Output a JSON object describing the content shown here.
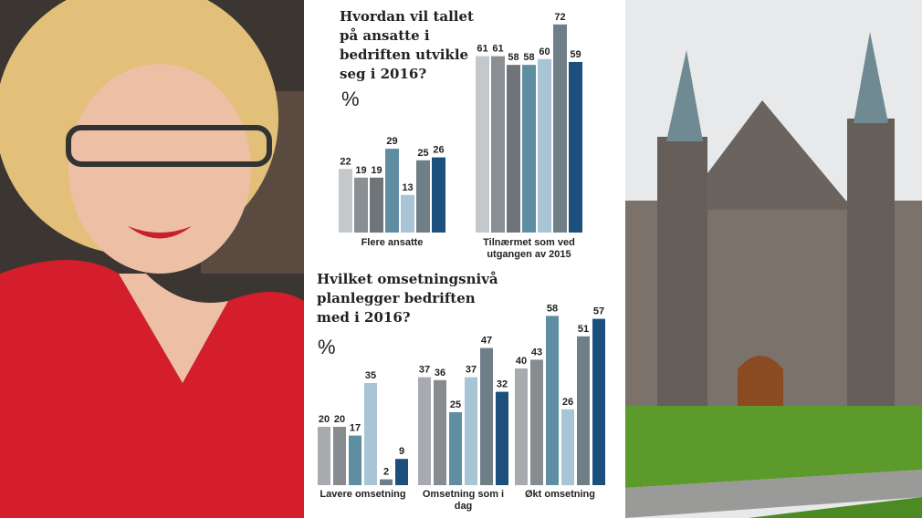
{
  "chart_data": [
    {
      "type": "bar",
      "title": "Hvordan vil tallet på ansatte i bedriften utvikle seg i 2016?",
      "unit_label": "%",
      "categories": [
        "Flere ansatte",
        "Tilnærmet som ved utgangen av 2015"
      ],
      "series": [
        {
          "color": "#c5c8cb",
          "values": [
            22,
            61
          ]
        },
        {
          "color": "#8a8f94",
          "values": [
            19,
            61
          ]
        },
        {
          "color": "#6f7479",
          "values": [
            19,
            58
          ]
        },
        {
          "color": "#5f8ea3",
          "values": [
            29,
            58
          ]
        },
        {
          "color": "#a9c4d4",
          "values": [
            13,
            60
          ]
        },
        {
          "color": "#6e7f88",
          "values": [
            25,
            72
          ]
        },
        {
          "color": "#1d4f7c",
          "values": [
            26,
            59
          ]
        }
      ]
    },
    {
      "type": "bar",
      "title": "Hvilket omsetningsnivå planlegger bedriften med i 2016?",
      "unit_label": "%",
      "categories": [
        "Lavere omsetning",
        "Omsetning som i dag",
        "Økt omsetning"
      ],
      "series": [
        {
          "color": "#a7abaf",
          "values": [
            20,
            37,
            40
          ]
        },
        {
          "color": "#878c91",
          "values": [
            20,
            36,
            43
          ]
        },
        {
          "color": "#5f8ea3",
          "values": [
            17,
            25,
            58
          ]
        },
        {
          "color": "#a9c4d4",
          "values": [
            35,
            37,
            26
          ]
        },
        {
          "color": "#6e7f88",
          "values": [
            2,
            47,
            51
          ]
        },
        {
          "color": "#1d4f7c",
          "values": [
            9,
            32,
            57
          ]
        }
      ]
    }
  ]
}
